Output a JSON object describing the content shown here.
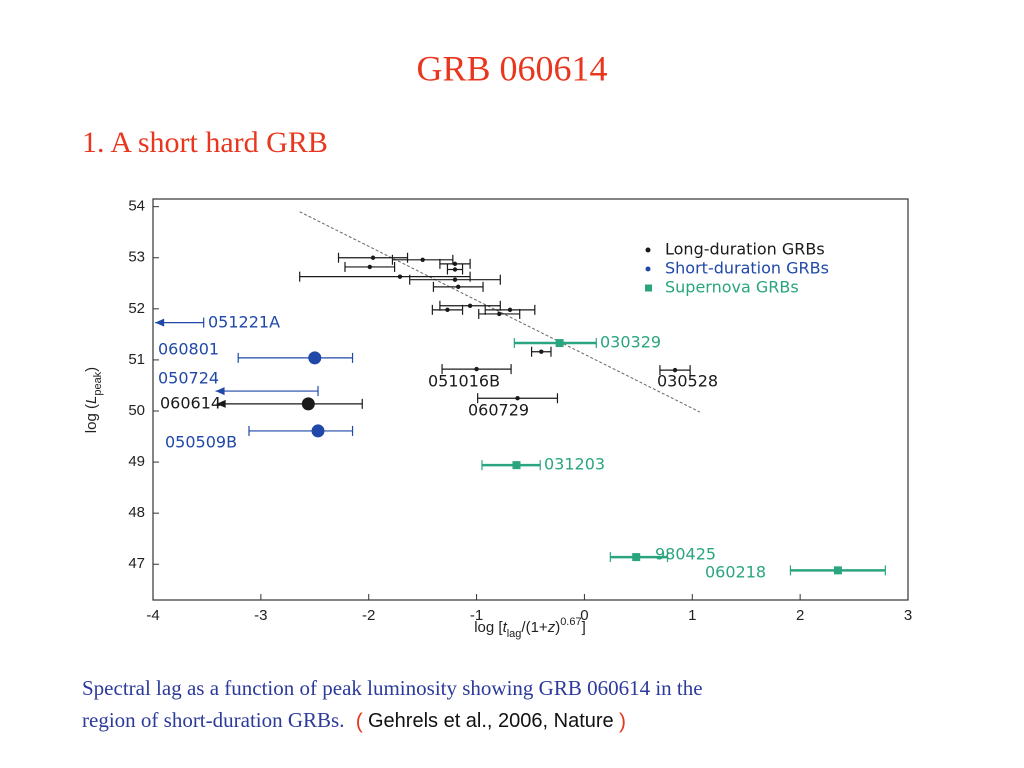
{
  "slide": {
    "title": "GRB 060614",
    "subtitle": "1. A short hard GRB",
    "caption": [
      "Spectral lag as a function of peak luminosity showing GRB 060614 in the",
      "region of short-duration GRBs.",
      "(",
      "Gehrels et al., 2006, Nature",
      ")"
    ]
  },
  "chart_data": {
    "type": "scatter",
    "xlabel_parts": [
      "log [",
      "t",
      "lag",
      "/(1+",
      "z",
      ")",
      "0.67",
      "]"
    ],
    "ylabel_parts": [
      "log (",
      "L",
      "peak",
      ")"
    ],
    "xlim": [
      -4,
      3
    ],
    "ylim": [
      46.3,
      54.15
    ],
    "xticks": [
      -4,
      -3,
      -2,
      -1,
      0,
      1,
      2,
      3
    ],
    "yticks": [
      47,
      48,
      49,
      50,
      51,
      52,
      53,
      54
    ],
    "legend": "upper right",
    "trend": {
      "x": [
        -2.64,
        1.07
      ],
      "y": [
        53.9,
        49.98
      ]
    },
    "series": [
      {
        "name": "Long-duration GRBs",
        "color": "#1a1a1a",
        "marker": "circle",
        "x": [
          -1.96,
          -1.5,
          -1.99,
          -1.2,
          -1.2,
          -1.71,
          -1.2,
          -1.17,
          -1.06,
          -1.27,
          -0.69,
          -0.79,
          -0.4,
          -1.0,
          0.84,
          -0.62,
          -2.56
        ],
        "xlo": [
          -2.28,
          -1.78,
          -2.22,
          -1.34,
          -1.27,
          -2.64,
          -1.62,
          -1.4,
          -1.34,
          -1.41,
          -0.92,
          -0.98,
          -0.49,
          -1.32,
          0.7,
          -0.99,
          -3.41
        ],
        "xhi": [
          -1.64,
          -1.22,
          -1.76,
          -1.06,
          -1.13,
          -1.06,
          -0.78,
          -0.94,
          -0.78,
          -1.13,
          -0.46,
          -0.6,
          -0.31,
          -0.68,
          0.98,
          -0.25,
          -2.06
        ],
        "y": [
          53.0,
          52.96,
          52.82,
          52.88,
          52.77,
          52.63,
          52.57,
          52.43,
          52.06,
          51.98,
          51.98,
          51.9,
          51.16,
          50.82,
          50.8,
          50.25,
          50.14
        ],
        "limit": [
          null,
          null,
          null,
          null,
          null,
          null,
          null,
          null,
          null,
          null,
          null,
          null,
          null,
          null,
          null,
          null,
          "left"
        ],
        "labels": [
          null,
          null,
          null,
          null,
          null,
          null,
          null,
          null,
          null,
          null,
          null,
          null,
          null,
          "051016B",
          "030528",
          "060729",
          "060614"
        ]
      },
      {
        "name": "Short-duration GRBs",
        "color": "#1f48a8",
        "marker": "circle",
        "x": [
          null,
          -2.5,
          null,
          -2.47
        ],
        "xlo": [
          -3.98,
          -3.21,
          -3.42,
          -3.11
        ],
        "xhi": [
          -3.53,
          -2.15,
          -2.47,
          -2.15
        ],
        "y": [
          51.73,
          51.04,
          50.39,
          49.61
        ],
        "limit": [
          "left",
          null,
          "left",
          null
        ],
        "labels": [
          "051221A",
          "060801",
          "050724",
          "050509B"
        ]
      },
      {
        "name": "Supernova GRBs",
        "color": "#2aa57f",
        "marker": "square",
        "x": [
          -0.23,
          -0.63,
          0.48,
          2.35
        ],
        "xlo": [
          -0.65,
          -0.95,
          0.24,
          1.91
        ],
        "xhi": [
          0.11,
          -0.41,
          0.77,
          2.79
        ],
        "y": [
          51.33,
          48.94,
          47.14,
          46.88
        ],
        "limit": [
          null,
          null,
          null,
          null
        ],
        "labels": [
          "030329",
          "031203",
          "980425",
          "060218"
        ]
      }
    ]
  }
}
